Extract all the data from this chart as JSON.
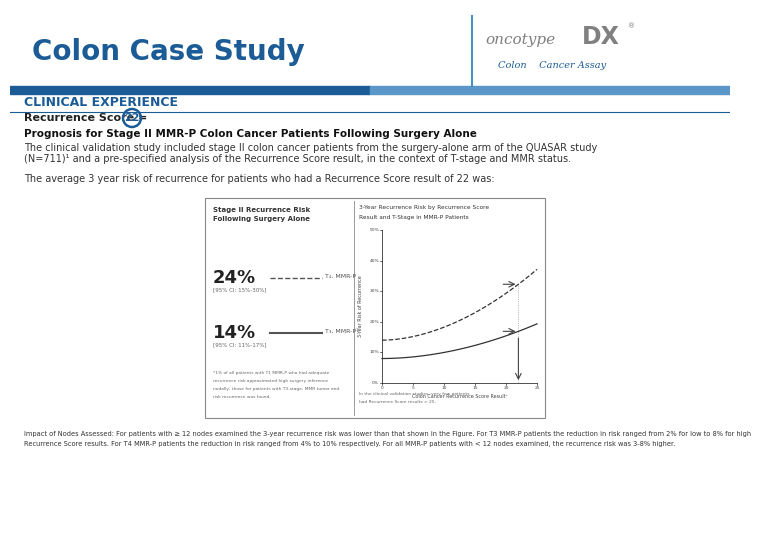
{
  "title": "Colon Case Study",
  "title_color": "#1B5C96",
  "title_fontsize": 20,
  "section_label": "CLINICAL EXPERIENCE",
  "section_label_color": "#1B5C96",
  "section_label_fontsize": 9,
  "recurrence_line": "Recurrence Score = ",
  "recurrence_score": "22",
  "bold_heading": "Prognosis for Stage II MMR-P Colon Cancer Patients Following Surgery Alone",
  "body_text1a": "The clinical validation study included stage II colon cancer patients from the surgery-alone arm of the QUASAR study",
  "body_text1b": "(N=711)¹ and a pre-specified analysis of the Recurrence Score result, in the context of T-stage and MMR status.",
  "body_text2": "The average 3 year risk of recurrence for patients who had a Recurrence Score result of 22 was:",
  "footer_text1": "Impact of Nodes Assessed: For patients with ≥ 12 nodes examined the 3-year recurrence risk was lower than that shown in the Figure. For T3 MMR-P patients the reduction in risk ranged from 2% for low to 8% for high",
  "footer_text2": "Recurrence Score results. For T4 MMR-P patients the reduction in risk ranged from 4% to 10% respectively. For all MMR-P patients with < 12 nodes examined, the recurrence risk was 3-8% higher.",
  "oncotype_italic": "oncotype",
  "oncotype_bold": "DX",
  "oncotype_sub": "Colon    Cancer Assay",
  "bg_color": "#FFFFFF",
  "bar_dark": "#1B5C96",
  "bar_light": "#5B96C8",
  "pct_24": "24%",
  "pct_14": "14%",
  "label_t4": "T₄, MMR-P",
  "label_t3": "T₃, MMR-P¹",
  "ci_24": "[95% CI: 15%-30%]",
  "ci_14": "[95% CI: 11%-17%]",
  "left_panel_title1": "Stage II Recurrence Risk",
  "left_panel_title2": "Following Surgery Alone",
  "right_panel_title1": "3-Year Recurrence Risk by Recurrence Score",
  "right_panel_title2": "Result and T-Stage in MMR-P Patients",
  "left_fn1": "*1% of all patients with T1 MMR-P who had adequate",
  "left_fn2": "recurrence risk approximated high surgery inference",
  "left_fn3": "nodally; those for patients with T3-stage, MMR tumor and",
  "left_fn4": "risk recurrence was found.",
  "right_fn1": "In the clinical validation studies, very few patients",
  "right_fn2": "had Recurrence Score results > 25.",
  "x_axis_label": "Colon Cancer Recurrence Score Result¹",
  "divider_line_color": "#4A90C0"
}
